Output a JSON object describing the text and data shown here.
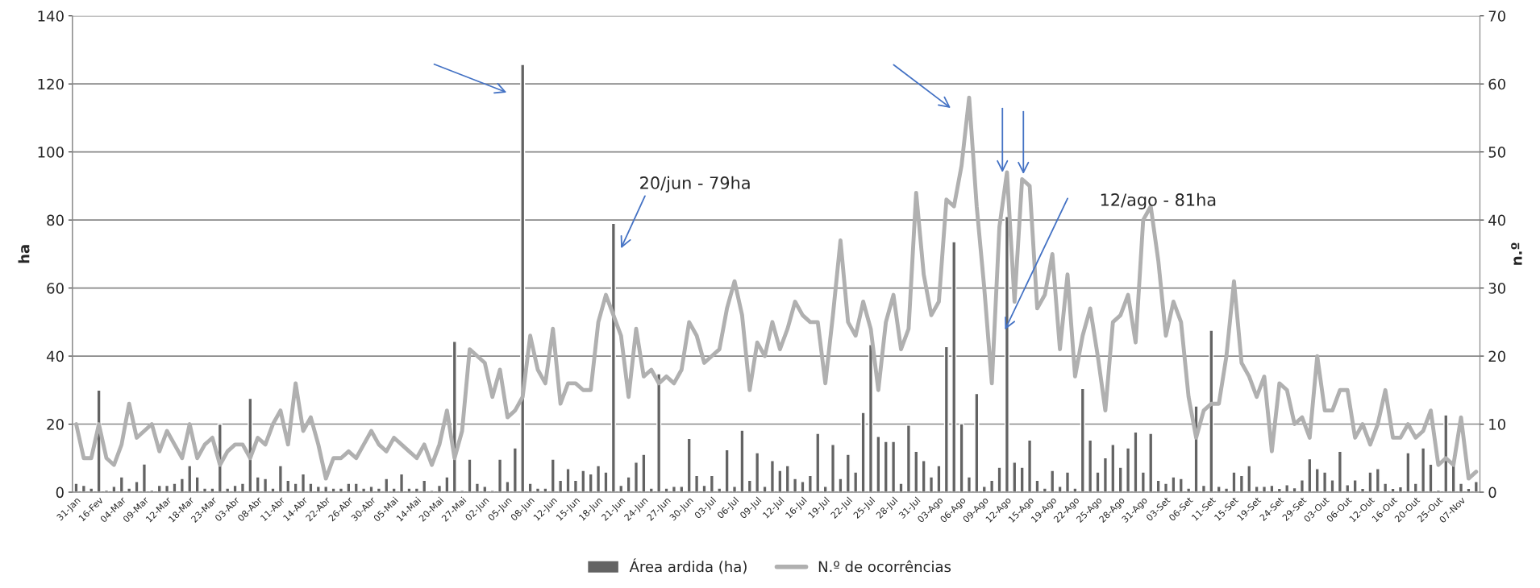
{
  "chart_data": {
    "type": "bar",
    "categories": [
      "31-Jan",
      null,
      null,
      "16-Fev",
      null,
      null,
      "04-Mar",
      null,
      null,
      "09-Mar",
      null,
      null,
      "12-Mar",
      null,
      null,
      "18-Mar",
      null,
      null,
      "23-Mar",
      null,
      null,
      "03-Abr",
      null,
      null,
      "08-Abr",
      null,
      null,
      "11-Abr",
      null,
      null,
      "14-Abr",
      null,
      null,
      "22-Abr",
      null,
      null,
      "26-Abr",
      null,
      null,
      "30-Abr",
      null,
      null,
      "05-Mai",
      null,
      null,
      "14-Mai",
      null,
      null,
      "20-Mai",
      null,
      null,
      "27-Mai",
      null,
      null,
      "02-Jun",
      null,
      null,
      "05-Jun",
      null,
      null,
      "08-Jun",
      null,
      null,
      "12-Jun",
      null,
      null,
      "15-Jun",
      null,
      null,
      "18-Jun",
      null,
      null,
      "21-Jun",
      null,
      null,
      "24-Jun",
      null,
      null,
      "27-Jun",
      null,
      null,
      "30-Jun",
      null,
      null,
      "03-Jul",
      null,
      null,
      "06-Jul",
      null,
      null,
      "09-Jul",
      null,
      null,
      "12-Jul",
      null,
      null,
      "16-Jul",
      null,
      null,
      "19-Jul",
      null,
      null,
      "22-Jul",
      null,
      null,
      "25-Jul",
      null,
      null,
      "28-Jul",
      null,
      null,
      "31-Jul",
      null,
      null,
      "03-Ago",
      null,
      null,
      "06-Ago",
      null,
      null,
      "09-Ago",
      null,
      null,
      "12-Ago",
      null,
      null,
      "15-Ago",
      null,
      null,
      "19-Ago",
      null,
      null,
      "22-Ago",
      null,
      null,
      "25-Ago",
      null,
      null,
      "28-Ago",
      null,
      null,
      "31-Ago",
      null,
      null,
      "03-Set",
      null,
      null,
      "06-Set",
      null,
      null,
      "11-Set",
      null,
      null,
      "15-Set",
      null,
      null,
      "19-Set",
      null,
      null,
      "24-Set",
      null,
      null,
      "29-Set",
      null,
      null,
      "03-Out",
      null,
      null,
      "06-Out",
      null,
      null,
      "12-Out",
      null,
      null,
      "16-Out",
      null,
      null,
      "20-Out",
      null,
      null,
      "25-Out",
      null,
      null,
      "07-Nov",
      null,
      null
    ],
    "series": [
      {
        "name": "Área ardida (ha)",
        "color": "#636363",
        "values": [
          2.6,
          2,
          1.2,
          30,
          0.6,
          1.7,
          4.5,
          1.2,
          3.1,
          8.3,
          0.6,
          2,
          2,
          2.6,
          4,
          7.8,
          4.5,
          1.2,
          1.2,
          20,
          1.2,
          2,
          2.6,
          27.6,
          4.5,
          4,
          1.2,
          7.8,
          3.5,
          2.6,
          5.4,
          2.6,
          1.7,
          1.7,
          1.2,
          1.2,
          2.6,
          2.6,
          1.2,
          1.7,
          1.2,
          4,
          1.2,
          5.4,
          1.2,
          1.2,
          3.5,
          0.5,
          2,
          4.5,
          44.3,
          0.5,
          9.7,
          2.6,
          1.7,
          0.5,
          9.7,
          3.1,
          13,
          125.7,
          2.6,
          1.2,
          1.2,
          9.7,
          3.5,
          6.9,
          3.5,
          6.4,
          5.4,
          7.8,
          5.9,
          79,
          2,
          4.5,
          8.8,
          11.1,
          1.2,
          34.8,
          1.2,
          1.7,
          1.7,
          15.8,
          4.9,
          2,
          4.9,
          1.2,
          12.5,
          1.7,
          18.2,
          3.5,
          11.6,
          1.7,
          9.3,
          6.4,
          7.8,
          4,
          3.1,
          4.9,
          17.3,
          1.7,
          14,
          4,
          11.1,
          5.9,
          23.4,
          43.4,
          16.4,
          14.9,
          14.9,
          2.6,
          19.7,
          12,
          9.3,
          4.5,
          7.8,
          42.8,
          73.6,
          20.1,
          4.5,
          29,
          1.7,
          3.5,
          7.3,
          81,
          8.8,
          7.3,
          15.3,
          3.5,
          1.2,
          6.4,
          1.7,
          5.9,
          1.2,
          30.5,
          15.3,
          5.9,
          10.1,
          14,
          7.3,
          13,
          17.7,
          5.9,
          17.3,
          3.5,
          2.6,
          4.5,
          4,
          1.2,
          25.3,
          2,
          47.6,
          1.7,
          1.2,
          5.9,
          4.9,
          7.8,
          1.7,
          1.7,
          2,
          1.1,
          2.2,
          1.3,
          3.6,
          9.8,
          6.9,
          5.9,
          3.6,
          12,
          2.2,
          3.6,
          1.1,
          5.9,
          6.9,
          2.6,
          1.1,
          1.6,
          11.6,
          2.6,
          13,
          8.2,
          0.6,
          22.7,
          8.2,
          2.6,
          1.1,
          3.1
        ]
      },
      {
        "name": "N.º de ocorrências",
        "type": "line",
        "axis": "y2",
        "color": "#b0b0b0",
        "values": [
          10,
          5,
          5,
          10,
          5,
          4,
          7,
          13,
          8,
          9,
          10,
          6,
          9,
          7,
          5,
          10,
          5,
          7,
          8,
          4,
          6,
          7,
          7,
          5,
          8,
          7,
          10,
          12,
          7,
          16,
          9,
          11,
          7,
          2,
          5,
          5,
          6,
          5,
          7,
          9,
          7,
          6,
          8,
          7,
          6,
          5,
          7,
          4,
          7,
          12,
          5,
          9,
          21,
          20,
          19,
          14,
          18,
          11,
          12,
          14,
          23,
          18,
          16,
          24,
          13,
          16,
          16,
          15,
          15,
          25,
          29,
          26,
          23,
          14,
          24,
          17,
          18,
          16,
          17,
          16,
          18,
          25,
          23,
          19,
          20,
          21,
          27,
          31,
          26,
          15,
          22,
          20,
          25,
          21,
          24,
          28,
          26,
          25,
          25,
          16,
          26,
          37,
          25,
          23,
          28,
          24,
          15,
          25,
          29,
          21,
          24,
          44,
          32,
          26,
          28,
          43,
          42,
          48,
          58,
          42,
          30,
          16,
          39,
          47,
          28,
          46,
          45,
          27,
          29,
          35,
          21,
          32,
          17,
          23,
          27,
          20,
          12,
          25,
          26,
          29,
          22,
          40,
          42,
          34,
          23,
          28,
          25,
          14,
          8,
          12,
          13,
          13,
          20,
          31,
          19,
          17,
          14,
          17,
          6,
          16,
          15,
          10,
          11,
          8,
          20,
          12,
          12,
          15,
          15,
          8,
          10,
          7,
          10,
          15,
          8,
          8,
          10,
          8,
          9,
          12,
          4,
          5,
          4,
          11,
          2,
          3
        ]
      }
    ],
    "ylabel": "ha",
    "y2label": "n.º",
    "ylim": [
      0,
      140
    ],
    "yticks": [
      0,
      20,
      40,
      60,
      80,
      100,
      120,
      140
    ],
    "y2lim": [
      0,
      70
    ],
    "y2ticks": [
      0,
      10,
      20,
      30,
      40,
      50,
      60,
      70
    ],
    "annotations": [
      "20/jun - 79ha",
      "12/ago - 81ha"
    ],
    "grid": "y",
    "legend": "bottom",
    "line_style": "solid"
  }
}
